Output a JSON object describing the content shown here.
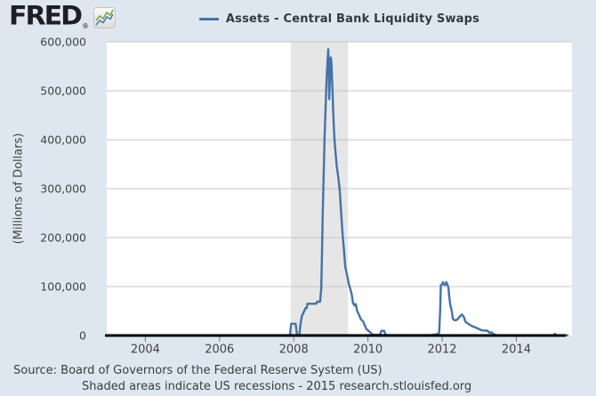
{
  "brand": {
    "logo_text": "FRED",
    "reg_mark": "®"
  },
  "footer": {
    "source": "Source: Board of Governors of the Federal Reserve System (US)",
    "note": "Shaded areas indicate US recessions - 2015 research.stlouisfed.org"
  },
  "colors": {
    "background": "#dee7f0",
    "plot_background": "#ffffff",
    "recession_band": "#e6e6e6",
    "gridline": "#c4c4c4",
    "axis_line": "#000000",
    "tick_mark": "#777777",
    "series_line": "#4572a7"
  },
  "chart_data": {
    "type": "line",
    "title": "Assets - Central Bank Liquidity Swaps",
    "ylabel": "(Millions of Dollars)",
    "xlabel": "",
    "x_range": [
      2002.96,
      2015.5
    ],
    "ylim": [
      0,
      600000
    ],
    "grid": true,
    "legend_position": "top-center",
    "x_ticks": [
      {
        "value": 2004,
        "label": "2004"
      },
      {
        "value": 2006,
        "label": "2006"
      },
      {
        "value": 2008,
        "label": "2008"
      },
      {
        "value": 2010,
        "label": "2010"
      },
      {
        "value": 2012,
        "label": "2012"
      },
      {
        "value": 2014,
        "label": "2014"
      }
    ],
    "y_ticks": [
      {
        "value": 0,
        "label": "0"
      },
      {
        "value": 100000,
        "label": "100,000"
      },
      {
        "value": 200000,
        "label": "200,000"
      },
      {
        "value": 300000,
        "label": "300,000"
      },
      {
        "value": 400000,
        "label": "400,000"
      },
      {
        "value": 500000,
        "label": "500,000"
      },
      {
        "value": 600000,
        "label": "600,000"
      }
    ],
    "recessions": [
      {
        "start": 2007.92,
        "end": 2009.46
      }
    ],
    "series": [
      {
        "name": "Assets - Central Bank Liquidity Swaps",
        "color": "#4572a7",
        "points": [
          [
            2002.96,
            0
          ],
          [
            2007.9,
            0
          ],
          [
            2007.93,
            24000
          ],
          [
            2008.05,
            24000
          ],
          [
            2008.09,
            0
          ],
          [
            2008.15,
            0
          ],
          [
            2008.18,
            22000
          ],
          [
            2008.22,
            40000
          ],
          [
            2008.26,
            46000
          ],
          [
            2008.32,
            56000
          ],
          [
            2008.35,
            56000
          ],
          [
            2008.37,
            65000
          ],
          [
            2008.61,
            65000
          ],
          [
            2008.63,
            69000
          ],
          [
            2008.71,
            69000
          ],
          [
            2008.74,
            95000
          ],
          [
            2008.76,
            160000
          ],
          [
            2008.78,
            240000
          ],
          [
            2008.8,
            310000
          ],
          [
            2008.83,
            400000
          ],
          [
            2008.86,
            470000
          ],
          [
            2008.89,
            530000
          ],
          [
            2008.91,
            560000
          ],
          [
            2008.93,
            585000
          ],
          [
            2008.945,
            558000
          ],
          [
            2008.957,
            483000
          ],
          [
            2008.975,
            525000
          ],
          [
            2009.0,
            568000
          ],
          [
            2009.02,
            556000
          ],
          [
            2009.045,
            500000
          ],
          [
            2009.06,
            467000
          ],
          [
            2009.08,
            430000
          ],
          [
            2009.1,
            398000
          ],
          [
            2009.13,
            372000
          ],
          [
            2009.16,
            345000
          ],
          [
            2009.2,
            325000
          ],
          [
            2009.24,
            297000
          ],
          [
            2009.27,
            260000
          ],
          [
            2009.31,
            215000
          ],
          [
            2009.35,
            178000
          ],
          [
            2009.39,
            140000
          ],
          [
            2009.44,
            122000
          ],
          [
            2009.48,
            107000
          ],
          [
            2009.52,
            96000
          ],
          [
            2009.56,
            85000
          ],
          [
            2009.6,
            66000
          ],
          [
            2009.64,
            61000
          ],
          [
            2009.67,
            64000
          ],
          [
            2009.71,
            50000
          ],
          [
            2009.76,
            42000
          ],
          [
            2009.81,
            33000
          ],
          [
            2009.87,
            29000
          ],
          [
            2009.91,
            21000
          ],
          [
            2009.96,
            13000
          ],
          [
            2010.01,
            10000
          ],
          [
            2010.07,
            6000
          ],
          [
            2010.12,
            2000
          ],
          [
            2010.2,
            1500
          ],
          [
            2010.33,
            1500
          ],
          [
            2010.36,
            9500
          ],
          [
            2010.44,
            9500
          ],
          [
            2010.47,
            1500
          ],
          [
            2010.6,
            800
          ],
          [
            2011.2,
            800
          ],
          [
            2011.7,
            800
          ],
          [
            2011.87,
            2500
          ],
          [
            2011.92,
            6000
          ],
          [
            2011.95,
            55000
          ],
          [
            2011.965,
            103000
          ],
          [
            2012.0,
            104000
          ],
          [
            2012.02,
            109000
          ],
          [
            2012.05,
            105000
          ],
          [
            2012.08,
            103000
          ],
          [
            2012.11,
            109000
          ],
          [
            2012.14,
            105000
          ],
          [
            2012.17,
            97000
          ],
          [
            2012.19,
            80000
          ],
          [
            2012.22,
            62000
          ],
          [
            2012.26,
            50000
          ],
          [
            2012.29,
            34000
          ],
          [
            2012.33,
            31000
          ],
          [
            2012.4,
            32000
          ],
          [
            2012.47,
            38000
          ],
          [
            2012.53,
            43000
          ],
          [
            2012.58,
            39000
          ],
          [
            2012.63,
            28000
          ],
          [
            2012.7,
            24000
          ],
          [
            2012.78,
            20000
          ],
          [
            2012.88,
            17000
          ],
          [
            2012.97,
            14000
          ],
          [
            2013.05,
            11000
          ],
          [
            2013.12,
            10000
          ],
          [
            2013.22,
            10000
          ],
          [
            2013.28,
            5500
          ],
          [
            2013.33,
            6500
          ],
          [
            2013.4,
            2000
          ],
          [
            2013.5,
            400
          ],
          [
            2014.2,
            400
          ],
          [
            2014.9,
            400
          ],
          [
            2015.0,
            400
          ],
          [
            2015.04,
            3500
          ],
          [
            2015.08,
            700
          ],
          [
            2015.38,
            400
          ]
        ]
      }
    ]
  }
}
